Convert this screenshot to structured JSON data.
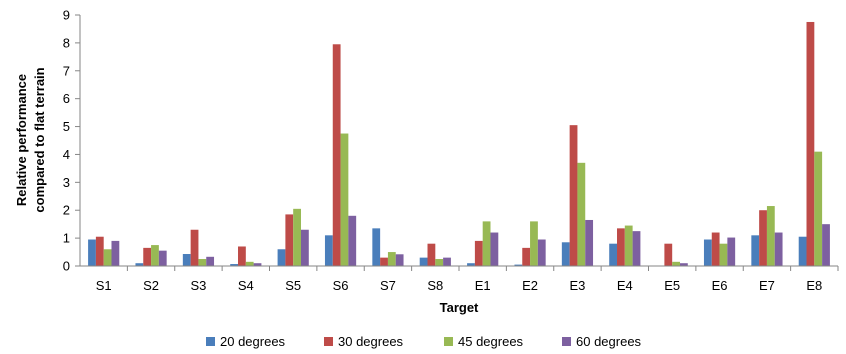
{
  "chart_data": {
    "type": "bar",
    "title": "",
    "xlabel": "Target",
    "ylabel": "Relative performance compared to flat terrain",
    "ylabel_lines": [
      "Relative performance",
      "compared to flat terrain"
    ],
    "ylim": [
      0,
      9
    ],
    "yticks": [
      0,
      1,
      2,
      3,
      4,
      5,
      6,
      7,
      8,
      9
    ],
    "grid": false,
    "legend": "bottom",
    "categories": [
      "S1",
      "S2",
      "S3",
      "S4",
      "S5",
      "S6",
      "S7",
      "S8",
      "E1",
      "E2",
      "E3",
      "E4",
      "E5",
      "E6",
      "E7",
      "E8"
    ],
    "series": [
      {
        "name": "20 degrees",
        "color": "#4a7ebb",
        "values": [
          0.95,
          0.1,
          0.43,
          0.07,
          0.6,
          1.1,
          1.35,
          0.3,
          0.1,
          0.05,
          0.85,
          0.8,
          0.0,
          0.95,
          1.1,
          1.05
        ]
      },
      {
        "name": "30 degrees",
        "color": "#be4b48",
        "values": [
          1.05,
          0.65,
          1.3,
          0.7,
          1.85,
          7.95,
          0.3,
          0.8,
          0.9,
          0.65,
          5.05,
          1.35,
          0.8,
          1.2,
          2.0,
          8.75
        ]
      },
      {
        "name": "45 degrees",
        "color": "#98b954",
        "values": [
          0.6,
          0.75,
          0.25,
          0.15,
          2.05,
          4.75,
          0.5,
          0.25,
          1.6,
          1.6,
          3.7,
          1.45,
          0.15,
          0.8,
          2.15,
          4.1
        ]
      },
      {
        "name": "60 degrees",
        "color": "#7d60a0",
        "values": [
          0.9,
          0.55,
          0.33,
          0.1,
          1.3,
          1.8,
          0.42,
          0.3,
          1.2,
          0.95,
          1.65,
          1.25,
          0.1,
          1.02,
          1.2,
          1.5
        ]
      }
    ]
  }
}
